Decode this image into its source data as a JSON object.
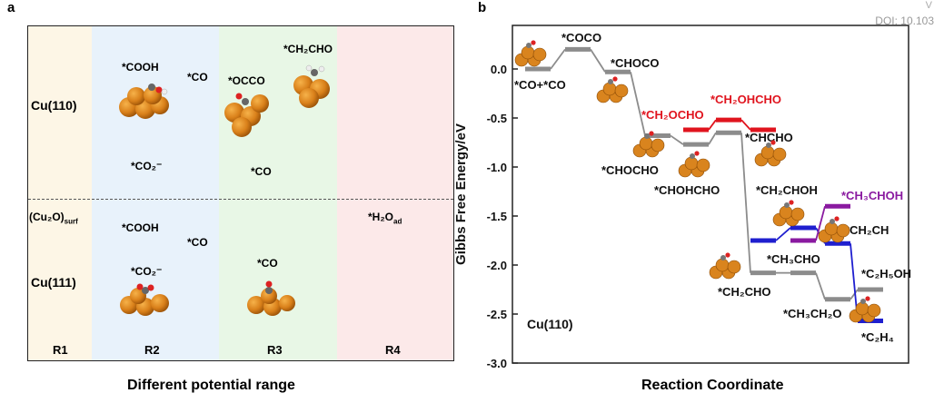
{
  "panel_a": {
    "letter": "a",
    "regions": [
      {
        "label": "R1",
        "color": "#fdf6e6"
      },
      {
        "label": "R2",
        "color": "#e8f2fb"
      },
      {
        "label": "R3",
        "color": "#e8f7e6"
      },
      {
        "label": "R4",
        "color": "#fce9e9"
      }
    ],
    "rows": {
      "top": "Cu(110)",
      "mid": "(Cu₂O)",
      "mid_sub": "surf",
      "bottom": "Cu(111)"
    },
    "species": {
      "top_cooh": "*COOH",
      "top_co_r2": "*CO",
      "top_occo": "*OCCO",
      "top_ch2cho": "*CH₂CHO",
      "top_co2": "*CO₂⁻",
      "top_co_r3": "*CO",
      "bot_cooh": "*COOH",
      "bot_h2o": "*H₂O",
      "bot_h2o_sub": "ad",
      "bot_co_r2": "*CO",
      "bot_co2": "*CO₂⁻",
      "bot_co_r3": "*CO"
    },
    "xlabel": "Different potential range"
  },
  "chart_data": {
    "type": "line",
    "panel_letter": "b",
    "ylabel": "Gibbs Free Energy/eV",
    "xlabel": "Reaction Coordinate",
    "ylim": [
      -3.0,
      0.25
    ],
    "yticks": [
      0.0,
      -0.5,
      -1.0,
      -1.5,
      -2.0,
      -2.5,
      -3.0
    ],
    "ytick_labels": [
      "0.0",
      "-0.5",
      "-1.0",
      "-1.5",
      "-2.0",
      "-2.5",
      "-3.0"
    ],
    "annotation": "Cu(110)",
    "colors": {
      "main": "#8c8c8c",
      "red": "#e0141e",
      "blue": "#1f1fcf",
      "purple": "#8a1aa0"
    },
    "series": [
      {
        "key": "main",
        "color": "#8c8c8c",
        "x": [
          0,
          1,
          2,
          3,
          4,
          5,
          6,
          7,
          8,
          9
        ],
        "y": [
          0.0,
          0.2,
          -0.03,
          -0.68,
          -0.77,
          -0.65,
          -2.08,
          -2.08,
          -2.35,
          -2.25
        ]
      },
      {
        "key": "red",
        "color": "#e0141e",
        "x": [
          4,
          5,
          6
        ],
        "y": [
          -0.62,
          -0.52,
          -0.62
        ]
      },
      {
        "key": "blue",
        "color": "#1f1fcf",
        "x": [
          6,
          7,
          8,
          9
        ],
        "y": [
          -1.75,
          -1.62,
          -1.78,
          -2.57
        ]
      },
      {
        "key": "purple",
        "color": "#8a1aa0",
        "x": [
          7,
          8
        ],
        "y": [
          -1.75,
          -1.4
        ]
      }
    ],
    "labels": {
      "co_co": "*CO+*CO",
      "coco": "*COCO",
      "choco": "*CHOCO",
      "chocho": "*CHOCHO",
      "ch2ocho": "*CH₂OCHO",
      "chohcho": "*CHOHCHO",
      "ch2ohcho": "*CH₂OHCHO",
      "chcho": "*CHCHO",
      "ch2choh": "*CH₂CHOH",
      "ch3choh": "*CH₃CHOH",
      "ch2ch": "*CH₂CH",
      "ch3cho": "*CH₃CHO",
      "ch2cho": "*CH₂CHO",
      "c2h5oh": "*C₂H₅OH",
      "ch3ch2o": "*CH₃CH₂O",
      "c2h4": "*C₂H₄"
    }
  },
  "header": {
    "doi": "DOI: 10.103",
    "vis": "V"
  }
}
